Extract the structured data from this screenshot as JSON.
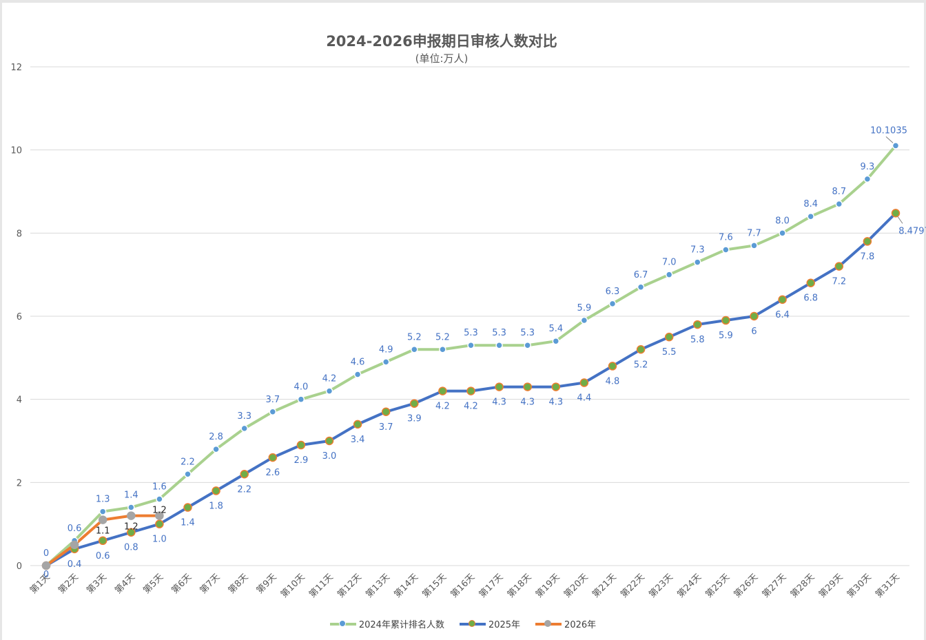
{
  "chart_data": {
    "type": "line",
    "title": "2024-2026申报期日审核人数对比",
    "subtitle": "(单位:万人)",
    "xlabel": "",
    "ylabel": "",
    "ylim": [
      0,
      12
    ],
    "yticks": [
      0,
      2,
      4,
      6,
      8,
      10,
      12
    ],
    "grid": true,
    "legend_position": "bottom",
    "categories": [
      "第1天",
      "第2天",
      "第3天",
      "第4天",
      "第5天",
      "第6天",
      "第7天",
      "第8天",
      "第9天",
      "第10天",
      "第11天",
      "第12天",
      "第13天",
      "第14天",
      "第15天",
      "第16天",
      "第17天",
      "第18天",
      "第19天",
      "第20天",
      "第21天",
      "第22天",
      "第23天",
      "第24天",
      "第25天",
      "第26天",
      "第27天",
      "第28天",
      "第29天",
      "第30天",
      "第31天"
    ],
    "series": [
      {
        "name": "2024年累计排名人数",
        "line_color": "#a9d18e",
        "marker_fill": "#5b9bd5",
        "marker_stroke": "#ffffff",
        "label_color": "#4472c4",
        "label_position": "above",
        "values": [
          0,
          0.6,
          1.3,
          1.4,
          1.6,
          2.2,
          2.8,
          3.3,
          3.7,
          4.0,
          4.2,
          4.6,
          4.9,
          5.2,
          5.2,
          5.3,
          5.3,
          5.3,
          5.4,
          5.9,
          6.3,
          6.7,
          7.0,
          7.3,
          7.6,
          7.7,
          8.0,
          8.4,
          8.7,
          9.3,
          10.1035
        ],
        "labels": [
          "0",
          "0.6",
          "1.3",
          "1.4",
          "1.6",
          "2.2",
          "2.8",
          "3.3",
          "3.7",
          "4.0",
          "4.2",
          "4.6",
          "4.9",
          "5.2",
          "5.2",
          "5.3",
          "5.3",
          "5.3",
          "5.4",
          "5.9",
          "6.3",
          "6.7",
          "7.0",
          "7.3",
          "7.6",
          "7.7",
          "8.0",
          "8.4",
          "8.7",
          "9.3",
          "10.1035"
        ]
      },
      {
        "name": "2025年",
        "line_color": "#4472c4",
        "marker_fill": "#70ad47",
        "marker_stroke": "#ed7d31",
        "label_color": "#4472c4",
        "label_position": "below",
        "values": [
          0,
          0.4,
          0.6,
          0.8,
          1.0,
          1.4,
          1.8,
          2.2,
          2.6,
          2.9,
          3.0,
          3.4,
          3.7,
          3.9,
          4.2,
          4.2,
          4.3,
          4.3,
          4.3,
          4.4,
          4.8,
          5.2,
          5.5,
          5.8,
          5.9,
          6.0,
          6.4,
          6.8,
          7.2,
          7.8,
          8.4797
        ],
        "labels": [
          "0",
          "0.4",
          "0.6",
          "0.8",
          "1.0",
          "1.4",
          "1.8",
          "2.2",
          "2.6",
          "2.9",
          "3.0",
          "3.4",
          "3.7",
          "3.9",
          "4.2",
          "4.2",
          "4.3",
          "4.3",
          "4.3",
          "4.4",
          "4.8",
          "5.2",
          "5.5",
          "5.8",
          "5.9",
          "6",
          "6.4",
          "6.8",
          "7.2",
          "7.8",
          "8.4797"
        ]
      },
      {
        "name": "2026年",
        "line_color": "#ed7d31",
        "marker_fill": "#a5a5a5",
        "marker_stroke": "#a5a5a5",
        "label_color": "#262626",
        "label_position": "below",
        "values": [
          0,
          0.5,
          1.1,
          1.2,
          1.2
        ],
        "labels": [
          "",
          "",
          "1.1",
          "1.2",
          "1.2"
        ]
      }
    ]
  }
}
